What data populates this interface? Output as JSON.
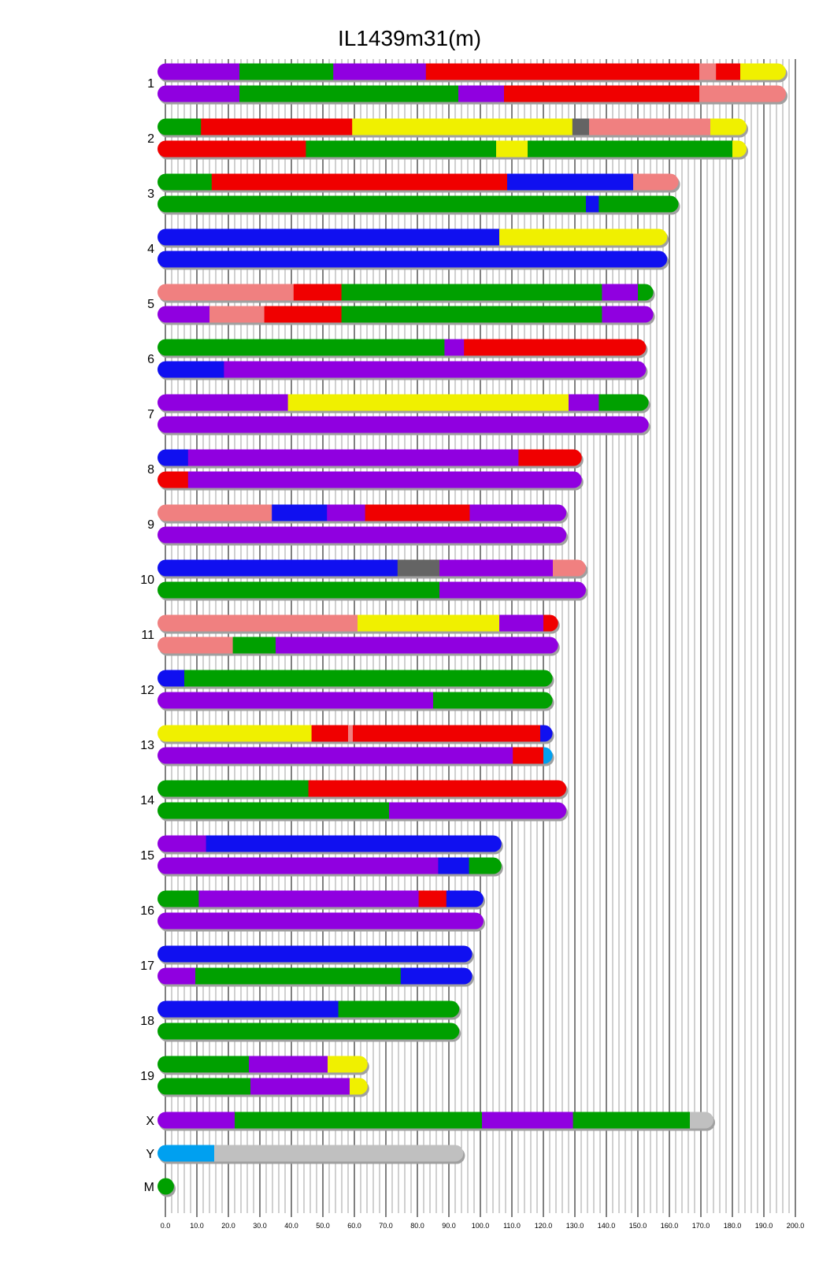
{
  "title": "IL1439m31(m)",
  "chart_data": {
    "type": "chromosome-painting",
    "title": "IL1439m31(m)",
    "xlabel": "",
    "x_range": [
      0,
      200
    ],
    "x_ticks": [
      "0.0",
      "10.0",
      "20.0",
      "30.0",
      "40.0",
      "50.0",
      "60.0",
      "70.0",
      "80.0",
      "90.0",
      "100.0",
      "110.0",
      "120.0",
      "130.0",
      "140.0",
      "150.0",
      "160.0",
      "170.0",
      "180.0",
      "190.0",
      "200.0"
    ],
    "minor_tick_step": 2,
    "grid": true,
    "colors": {
      "purple": "#9000e0",
      "green": "#00a000",
      "red": "#f00000",
      "pink": "#f08080",
      "yellow": "#f0f000",
      "blue": "#1010f0",
      "darkgray": "#646464",
      "lightblue": "#00a0f0",
      "gray": "#c0c0c0"
    },
    "chromosomes": [
      {
        "label": "1",
        "haplotypes": [
          [
            [
              0,
              23.5,
              "purple"
            ],
            [
              23.5,
              53.3,
              "green"
            ],
            [
              53.3,
              82.7,
              "purple"
            ],
            [
              82.7,
              169.5,
              "red"
            ],
            [
              169.5,
              174.8,
              "pink"
            ],
            [
              174.8,
              182.5,
              "red"
            ],
            [
              182.5,
              197,
              "yellow"
            ]
          ],
          [
            [
              0,
              23.5,
              "purple"
            ],
            [
              23.5,
              93,
              "green"
            ],
            [
              93,
              107.5,
              "purple"
            ],
            [
              107.5,
              169.5,
              "red"
            ],
            [
              169.5,
              197,
              "pink"
            ]
          ]
        ]
      },
      {
        "label": "2",
        "haplotypes": [
          [
            [
              0,
              11.3,
              "green"
            ],
            [
              11.3,
              59.3,
              "red"
            ],
            [
              59.3,
              129.2,
              "yellow"
            ],
            [
              129.2,
              134.5,
              "darkgray"
            ],
            [
              134.5,
              173,
              "pink"
            ],
            [
              173,
              184.5,
              "yellow"
            ]
          ],
          [
            [
              0,
              44.6,
              "red"
            ],
            [
              44.6,
              105,
              "green"
            ],
            [
              105,
              115,
              "yellow"
            ],
            [
              115,
              180,
              "green"
            ],
            [
              180,
              184.5,
              "yellow"
            ]
          ]
        ]
      },
      {
        "label": "3",
        "haplotypes": [
          [
            [
              0,
              14.7,
              "green"
            ],
            [
              14.7,
              108.5,
              "red"
            ],
            [
              108.5,
              148.5,
              "blue"
            ],
            [
              148.5,
              162.9,
              "pink"
            ]
          ],
          [
            [
              0,
              133.5,
              "green"
            ],
            [
              133.5,
              137.6,
              "blue"
            ],
            [
              137.6,
              162.9,
              "green"
            ]
          ]
        ]
      },
      {
        "label": "4",
        "haplotypes": [
          [
            [
              0,
              106,
              "blue"
            ],
            [
              106,
              159.3,
              "yellow"
            ]
          ],
          [
            [
              0,
              159.3,
              "blue"
            ]
          ]
        ]
      },
      {
        "label": "5",
        "haplotypes": [
          [
            [
              0,
              40.7,
              "pink"
            ],
            [
              40.7,
              55.9,
              "red"
            ],
            [
              55.9,
              138.6,
              "green"
            ],
            [
              138.6,
              150,
              "purple"
            ],
            [
              150,
              154.9,
              "green"
            ]
          ],
          [
            [
              0,
              14,
              "purple"
            ],
            [
              14,
              31.4,
              "pink"
            ],
            [
              31.4,
              55.9,
              "red"
            ],
            [
              55.9,
              138.6,
              "green"
            ],
            [
              138.6,
              154.9,
              "purple"
            ]
          ]
        ]
      },
      {
        "label": "6",
        "haplotypes": [
          [
            [
              0,
              88.6,
              "green"
            ],
            [
              88.6,
              94.8,
              "purple"
            ],
            [
              94.8,
              152.6,
              "red"
            ]
          ],
          [
            [
              0,
              18.6,
              "blue"
            ],
            [
              18.6,
              152.6,
              "purple"
            ]
          ]
        ]
      },
      {
        "label": "7",
        "haplotypes": [
          [
            [
              0,
              38.9,
              "purple"
            ],
            [
              38.9,
              128,
              "yellow"
            ],
            [
              128,
              137.6,
              "purple"
            ],
            [
              137.6,
              153.4,
              "green"
            ]
          ],
          [
            [
              0,
              153.4,
              "purple"
            ]
          ]
        ]
      },
      {
        "label": "8",
        "haplotypes": [
          [
            [
              0,
              7.2,
              "blue"
            ],
            [
              7.2,
              112.1,
              "purple"
            ],
            [
              112.1,
              132.2,
              "red"
            ]
          ],
          [
            [
              0,
              7.2,
              "red"
            ],
            [
              7.2,
              132.2,
              "purple"
            ]
          ]
        ]
      },
      {
        "label": "9",
        "haplotypes": [
          [
            [
              0,
              33.8,
              "pink"
            ],
            [
              33.8,
              51.3,
              "blue"
            ],
            [
              51.3,
              63.4,
              "purple"
            ],
            [
              63.4,
              96.6,
              "red"
            ],
            [
              96.6,
              127.3,
              "purple"
            ]
          ],
          [
            [
              0,
              127.3,
              "purple"
            ]
          ]
        ]
      },
      {
        "label": "10",
        "haplotypes": [
          [
            [
              0,
              73.7,
              "blue"
            ],
            [
              73.7,
              87,
              "darkgray"
            ],
            [
              87,
              123,
              "purple"
            ],
            [
              123,
              133.5,
              "pink"
            ]
          ],
          [
            [
              0,
              87,
              "green"
            ],
            [
              87,
              133.5,
              "purple"
            ]
          ]
        ]
      },
      {
        "label": "11",
        "haplotypes": [
          [
            [
              0,
              61,
              "pink"
            ],
            [
              61,
              106,
              "yellow"
            ],
            [
              106,
              120,
              "purple"
            ],
            [
              120,
              124.7,
              "red"
            ]
          ],
          [
            [
              0,
              21.4,
              "pink"
            ],
            [
              21.4,
              35,
              "green"
            ],
            [
              35,
              124.7,
              "purple"
            ]
          ]
        ]
      },
      {
        "label": "12",
        "haplotypes": [
          [
            [
              0,
              6,
              "blue"
            ],
            [
              6,
              122.9,
              "green"
            ]
          ],
          [
            [
              0,
              85,
              "purple"
            ],
            [
              85,
              122.9,
              "green"
            ]
          ]
        ]
      },
      {
        "label": "13",
        "haplotypes": [
          [
            [
              0,
              46.4,
              "yellow"
            ],
            [
              46.4,
              58,
              "red"
            ],
            [
              58,
              59.5,
              "pink"
            ],
            [
              59.5,
              119,
              "red"
            ],
            [
              119,
              122.9,
              "blue"
            ]
          ],
          [
            [
              0,
              110.3,
              "purple"
            ],
            [
              110.3,
              120,
              "red"
            ],
            [
              120,
              122.9,
              "lightblue"
            ]
          ]
        ]
      },
      {
        "label": "14",
        "haplotypes": [
          [
            [
              0,
              45.4,
              "green"
            ],
            [
              45.4,
              127.3,
              "red"
            ]
          ],
          [
            [
              0,
              71,
              "green"
            ],
            [
              71,
              127.3,
              "purple"
            ]
          ]
        ]
      },
      {
        "label": "15",
        "haplotypes": [
          [
            [
              0,
              12.9,
              "purple"
            ],
            [
              12.9,
              106.7,
              "blue"
            ]
          ],
          [
            [
              0,
              86.6,
              "purple"
            ],
            [
              86.6,
              96.4,
              "blue"
            ],
            [
              96.4,
              106.7,
              "green"
            ]
          ]
        ]
      },
      {
        "label": "16",
        "haplotypes": [
          [
            [
              0,
              10.6,
              "green"
            ],
            [
              10.6,
              80.4,
              "purple"
            ],
            [
              80.4,
              89.2,
              "red"
            ],
            [
              89.2,
              101,
              "blue"
            ]
          ],
          [
            [
              0,
              101,
              "purple"
            ]
          ]
        ]
      },
      {
        "label": "17",
        "haplotypes": [
          [
            [
              0,
              97.4,
              "blue"
            ]
          ],
          [
            [
              0,
              9.5,
              "purple"
            ],
            [
              9.5,
              74.7,
              "green"
            ],
            [
              74.7,
              97.4,
              "blue"
            ]
          ]
        ]
      },
      {
        "label": "18",
        "haplotypes": [
          [
            [
              0,
              54.9,
              "blue"
            ],
            [
              54.9,
              93.3,
              "green"
            ]
          ],
          [
            [
              0,
              93.3,
              "green"
            ]
          ]
        ]
      },
      {
        "label": "19",
        "haplotypes": [
          [
            [
              0,
              26.5,
              "green"
            ],
            [
              26.5,
              51.5,
              "purple"
            ],
            [
              51.5,
              64.2,
              "yellow"
            ]
          ],
          [
            [
              0,
              27,
              "green"
            ],
            [
              27,
              58.5,
              "purple"
            ],
            [
              58.5,
              64.2,
              "yellow"
            ]
          ]
        ]
      },
      {
        "label": "X",
        "haplotypes": [
          [
            [
              0,
              22,
              "purple"
            ],
            [
              22,
              100.5,
              "green"
            ],
            [
              100.5,
              129.4,
              "purple"
            ],
            [
              129.4,
              166.5,
              "green"
            ],
            [
              166.5,
              174,
              "gray"
            ]
          ]
        ]
      },
      {
        "label": "Y",
        "haplotypes": [
          [
            [
              0,
              15.5,
              "lightblue"
            ],
            [
              15.5,
              94.6,
              "gray"
            ]
          ]
        ]
      },
      {
        "label": "M",
        "haplotypes": [
          [
            [
              0,
              2,
              "green"
            ]
          ]
        ]
      }
    ]
  }
}
